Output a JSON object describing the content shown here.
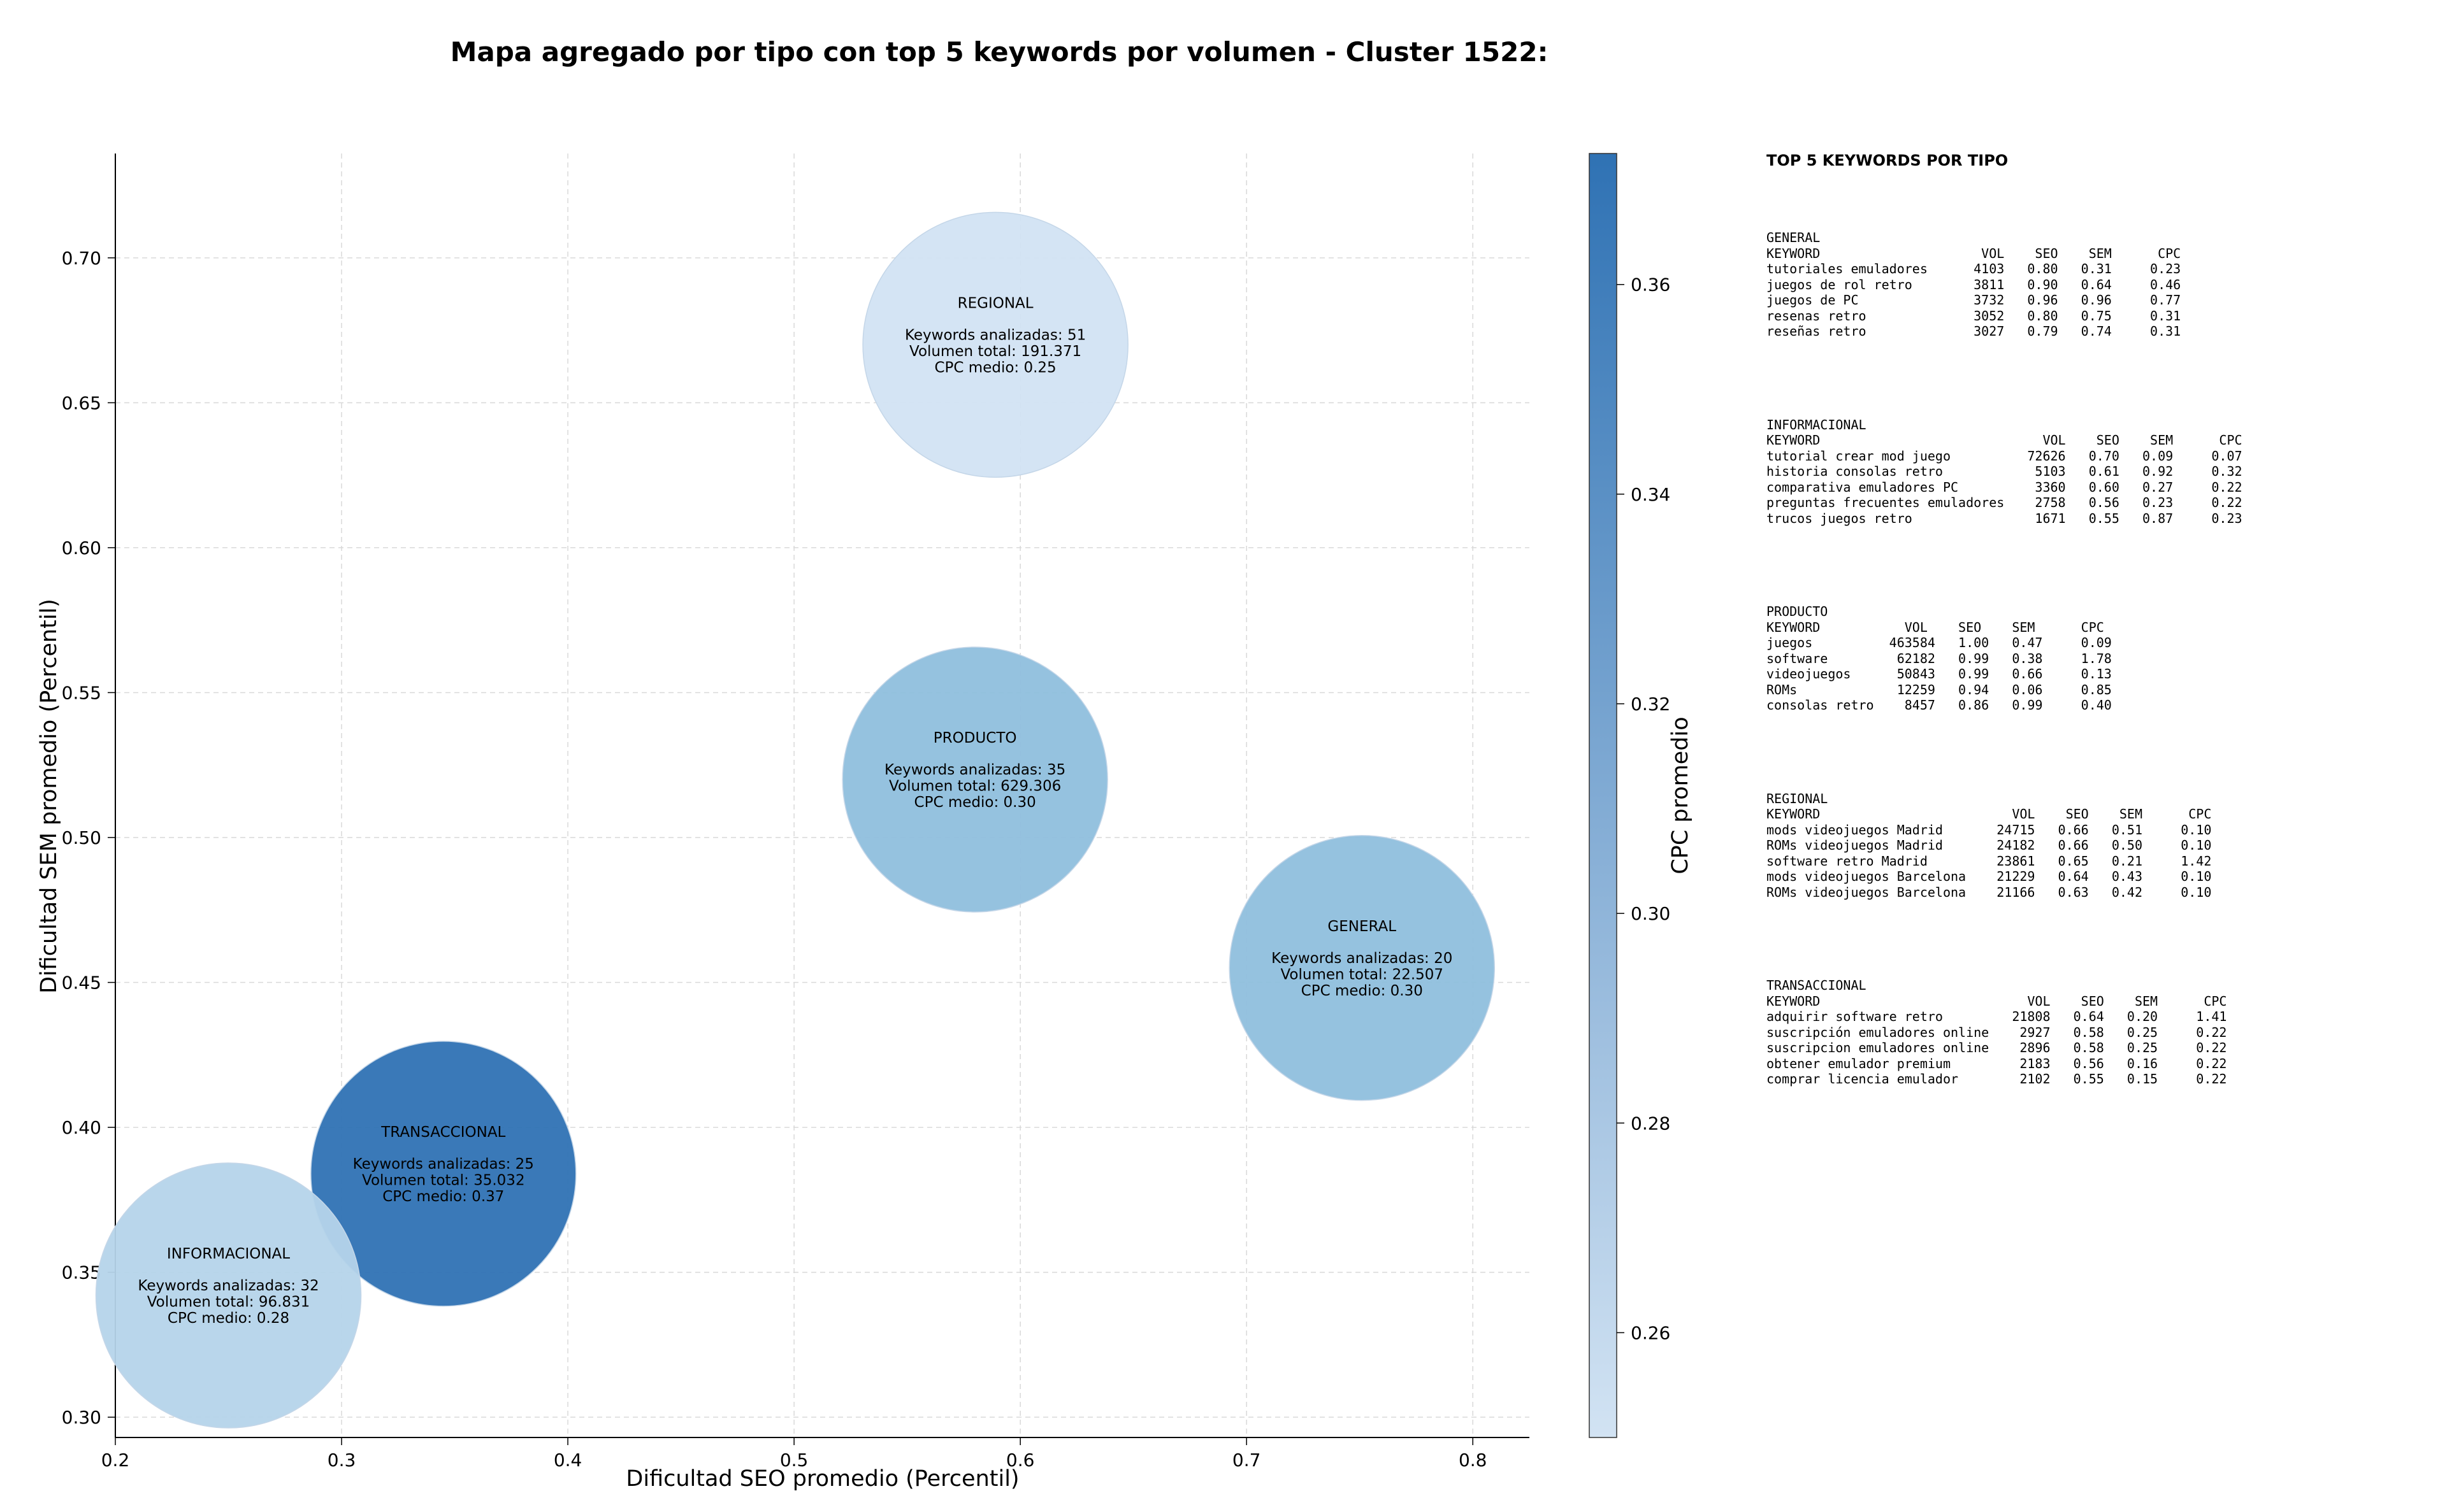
{
  "chart_data": {
    "type": "scatter",
    "title": "Mapa agregado por tipo con top 5 keywords por volumen - Cluster 1522:",
    "xlabel": "Dificultad SEO promedio (Percentil)",
    "ylabel": "Dificultad SEM promedio (Percentil)",
    "xlim": [
      0.2,
      0.825
    ],
    "ylim": [
      0.293,
      0.736
    ],
    "xticks": [
      "0.2",
      "0.3",
      "0.4",
      "0.5",
      "0.6",
      "0.7",
      "0.8"
    ],
    "yticks": [
      "0.30",
      "0.35",
      "0.40",
      "0.45",
      "0.50",
      "0.55",
      "0.60",
      "0.65",
      "0.70"
    ],
    "grid": true,
    "colorbar": {
      "label": "CPC promedio",
      "range": [
        0.25,
        0.3725
      ],
      "ticks": [
        "0.26",
        "0.28",
        "0.30",
        "0.32",
        "0.34",
        "0.36"
      ],
      "color_low": "#d2e3f3",
      "color_high": "#2f72b4"
    },
    "bubbles": [
      {
        "tipo": "REGIONAL",
        "x": 0.589,
        "y": 0.67,
        "keywords": "Keywords analizadas: 51",
        "volumen": "Volumen total: 191.371",
        "cpc_label": "CPC medio: 0.25",
        "cpc": 0.25,
        "color": "#d2e3f3"
      },
      {
        "tipo": "PRODUCTO",
        "x": 0.58,
        "y": 0.52,
        "keywords": "Keywords analizadas: 35",
        "volumen": "Volumen total: 629.306",
        "cpc_label": "CPC medio: 0.30",
        "cpc": 0.3,
        "color": "#8fbfdd"
      },
      {
        "tipo": "GENERAL",
        "x": 0.751,
        "y": 0.455,
        "keywords": "Keywords analizadas: 20",
        "volumen": "Volumen total: 22.507",
        "cpc_label": "CPC medio: 0.30",
        "cpc": 0.3,
        "color": "#8fbfdd"
      },
      {
        "tipo": "TRANSACCIONAL",
        "x": 0.345,
        "y": 0.384,
        "keywords": "Keywords analizadas: 25",
        "volumen": "Volumen total: 35.032",
        "cpc_label": "CPC medio: 0.37",
        "cpc": 0.37,
        "color": "#2f72b4"
      },
      {
        "tipo": "INFORMACIONAL",
        "x": 0.25,
        "y": 0.342,
        "keywords": "Keywords analizadas: 32",
        "volumen": "Volumen total: 96.831",
        "cpc_label": "CPC medio: 0.28",
        "cpc": 0.28,
        "color": "#b5d4ea"
      }
    ]
  },
  "side_panel": {
    "title": "TOP 5 KEYWORDS POR TIPO",
    "blocks": [
      {
        "type": "GENERAL",
        "header": "KEYWORD                     VOL    SEO    SEM      CPC",
        "rows": [
          "tutoriales emuladores      4103   0.80   0.31     0.23",
          "juegos de rol retro        3811   0.90   0.64     0.46",
          "juegos de PC               3732   0.96   0.96     0.77",
          "resenas retro              3052   0.80   0.75     0.31",
          "reseñas retro              3027   0.79   0.74     0.31"
        ]
      },
      {
        "type": "INFORMACIONAL",
        "header": "KEYWORD                             VOL    SEO    SEM      CPC",
        "rows": [
          "tutorial crear mod juego          72626   0.70   0.09     0.07",
          "historia consolas retro            5103   0.61   0.92     0.32",
          "comparativa emuladores PC          3360   0.60   0.27     0.22",
          "preguntas frecuentes emuladores    2758   0.56   0.23     0.22",
          "trucos juegos retro                1671   0.55   0.87     0.23"
        ]
      },
      {
        "type": "PRODUCTO",
        "header": "KEYWORD           VOL    SEO    SEM      CPC",
        "rows": [
          "juegos          463584   1.00   0.47     0.09",
          "software         62182   0.99   0.38     1.78",
          "videojuegos      50843   0.99   0.66     0.13",
          "ROMs             12259   0.94   0.06     0.85",
          "consolas retro    8457   0.86   0.99     0.40"
        ]
      },
      {
        "type": "REGIONAL",
        "header": "KEYWORD                         VOL    SEO    SEM      CPC",
        "rows": [
          "mods videojuegos Madrid       24715   0.66   0.51     0.10",
          "ROMs videojuegos Madrid       24182   0.66   0.50     0.10",
          "software retro Madrid         23861   0.65   0.21     1.42",
          "mods videojuegos Barcelona    21229   0.64   0.43     0.10",
          "ROMs videojuegos Barcelona    21166   0.63   0.42     0.10"
        ]
      },
      {
        "type": "TRANSACCIONAL",
        "header": "KEYWORD                           VOL    SEO    SEM      CPC",
        "rows": [
          "adquirir software retro         21808   0.64   0.20     1.41",
          "suscripción emuladores online    2927   0.58   0.25     0.22",
          "suscripcion emuladores online    2896   0.58   0.25     0.22",
          "obtener emulador premium         2183   0.56   0.16     0.22",
          "comprar licencia emulador        2102   0.55   0.15     0.22"
        ]
      }
    ]
  }
}
